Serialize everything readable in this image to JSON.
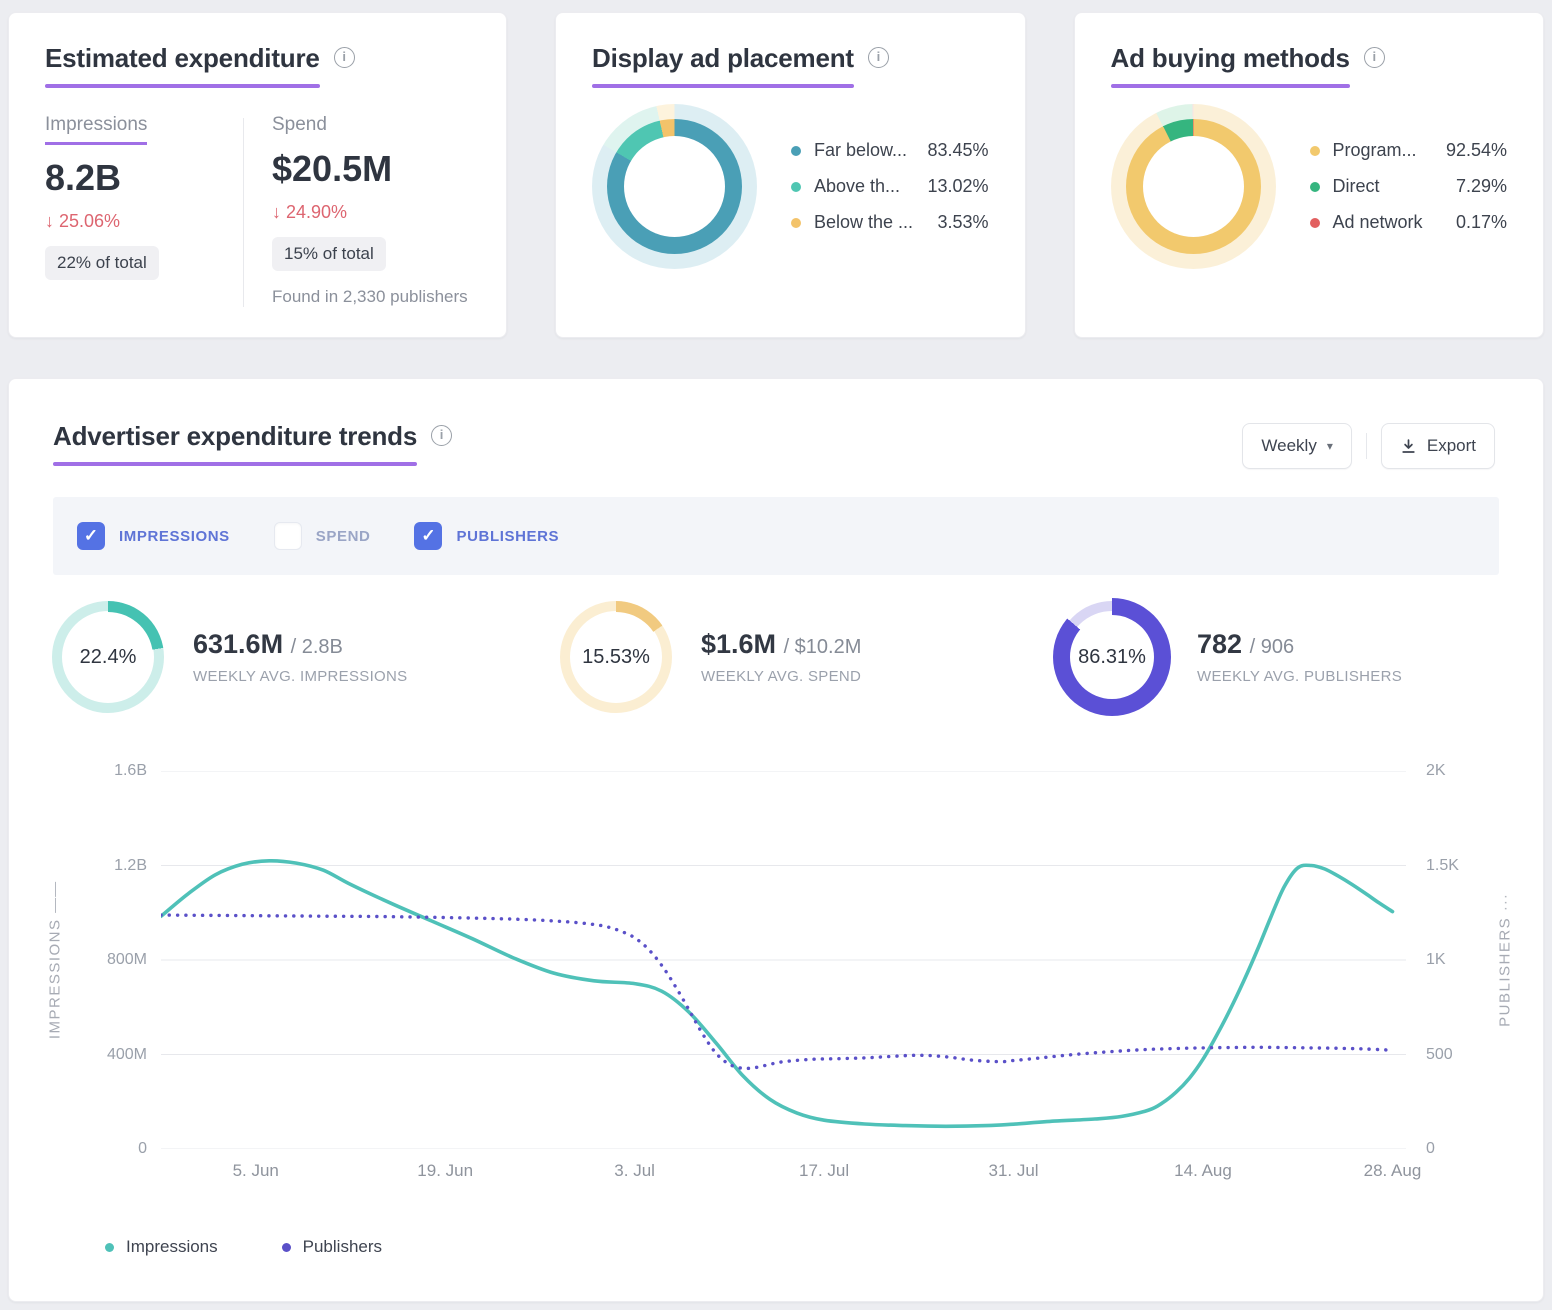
{
  "colors": {
    "accent_purple": "#a06fe6",
    "teal_line": "#4fc1b8",
    "purple_line": "#5a50c8",
    "checkbox_blue": "#5472e4",
    "negative_red": "#dd6570"
  },
  "icons": {
    "info": "i",
    "chevron_down": "▾",
    "check": "✓"
  },
  "cards": {
    "estimated_expenditure": {
      "title": "Estimated expenditure",
      "columns": [
        {
          "label": "Impressions",
          "value": "8.2B",
          "change": "↓ 25.06%",
          "share": "22% of total"
        },
        {
          "label": "Spend",
          "value": "$20.5M",
          "change": "↓ 24.90%",
          "share": "15% of total"
        }
      ],
      "footnote": "Found in 2,330 publishers"
    },
    "display_ad_placement": {
      "title": "Display ad placement",
      "legend": [
        {
          "label": "Far below...",
          "value": "83.45%",
          "color": "#4a9fb6"
        },
        {
          "label": "Above th...",
          "value": "13.02%",
          "color": "#4fc6b2"
        },
        {
          "label": "Below the ...",
          "value": "3.53%",
          "color": "#f3c36a"
        }
      ],
      "donut": {
        "mode": "segments",
        "segments": [
          {
            "pct": 83.45,
            "color": "#4a9fb6"
          },
          {
            "pct": 13.02,
            "color": "#4fc6b2"
          },
          {
            "pct": 3.53,
            "color": "#f3c36a"
          }
        ],
        "halo": [
          {
            "pct": 83.45,
            "color": "#ddeef3"
          },
          {
            "pct": 13.02,
            "color": "#dff4ef"
          },
          {
            "pct": 3.53,
            "color": "#fdf3dd"
          }
        ]
      }
    },
    "ad_buying_methods": {
      "title": "Ad buying methods",
      "legend": [
        {
          "label": "Program...",
          "value": "92.54%",
          "color": "#f2c96d"
        },
        {
          "label": "Direct",
          "value": "7.29%",
          "color": "#35b57f"
        },
        {
          "label": "Ad network",
          "value": "0.17%",
          "color": "#e25f5f"
        }
      ],
      "donut": {
        "mode": "segments",
        "segments": [
          {
            "pct": 92.54,
            "color": "#f2c96d"
          },
          {
            "pct": 7.29,
            "color": "#35b57f"
          },
          {
            "pct": 0.17,
            "color": "#e25f5f"
          }
        ],
        "halo": [
          {
            "pct": 92.54,
            "color": "#fbf0d8"
          },
          {
            "pct": 7.29,
            "color": "#def4e8"
          },
          {
            "pct": 0.17,
            "color": "#fbe2e2"
          }
        ]
      }
    }
  },
  "trends": {
    "title": "Advertiser expenditure trends",
    "period_selector": {
      "value": "Weekly"
    },
    "export_label": "Export",
    "toggles": [
      {
        "label": "IMPRESSIONS",
        "checked": true
      },
      {
        "label": "SPEND",
        "checked": false
      },
      {
        "label": "PUBLISHERS",
        "checked": true
      }
    ],
    "stats": [
      {
        "percent": "22.4%",
        "value": "631.6M",
        "total": "/ 2.8B",
        "caption": "WEEKLY AVG. IMPRESSIONS",
        "donut": {
          "mode": "progress",
          "pct": 22.4,
          "color": "#45c2b2",
          "track": "#cdeeea"
        }
      },
      {
        "percent": "15.53%",
        "value": "$1.6M",
        "total": "/ $10.2M",
        "caption": "WEEKLY AVG. SPEND",
        "donut": {
          "mode": "progress",
          "pct": 15.53,
          "color": "#f1ca80",
          "track": "#fbeed2"
        }
      },
      {
        "percent": "86.31%",
        "value": "782",
        "total": "/ 906",
        "caption": "WEEKLY AVG. PUBLISHERS",
        "donut": {
          "mode": "progress",
          "pct": 86.31,
          "color": "#5b50d6",
          "track": "#d9d6f4",
          "thick": true
        }
      }
    ],
    "legend": [
      {
        "label": "Impressions",
        "color": "#4fc1b8"
      },
      {
        "label": "Publishers",
        "color": "#5a50c8"
      }
    ]
  },
  "chart_data": {
    "type": "line",
    "title": "Advertiser expenditure trends",
    "grid": true,
    "legend_position": "bottom",
    "x_axis": {
      "tick_labels": [
        "5. Jun",
        "19. Jun",
        "3. Jul",
        "17. Jul",
        "31. Jul",
        "14. Aug",
        "28. Aug"
      ],
      "tick_positions_days": [
        7,
        21,
        35,
        49,
        63,
        77,
        91
      ],
      "range_days": [
        0,
        92
      ]
    },
    "y_left": {
      "label": "IMPRESSIONS",
      "marker": "——",
      "tick_labels_top_down": [
        "1.6B",
        "1.2B",
        "800M",
        "400M",
        "0"
      ],
      "range": [
        0,
        1600
      ],
      "units": "millions"
    },
    "y_right": {
      "label": "PUBLISHERS",
      "marker": "···",
      "tick_labels_top_down": [
        "2K",
        "1.5K",
        "1K",
        "500",
        "0"
      ],
      "range": [
        0,
        2000
      ]
    },
    "series": [
      {
        "name": "Impressions",
        "axis": "left",
        "style": "solid",
        "color": "#4fc1b8",
        "points_day_value": [
          [
            0,
            985
          ],
          [
            2,
            1080
          ],
          [
            4,
            1160
          ],
          [
            6,
            1205
          ],
          [
            8,
            1220
          ],
          [
            10,
            1210
          ],
          [
            12,
            1180
          ],
          [
            14,
            1120
          ],
          [
            17,
            1040
          ],
          [
            20,
            965
          ],
          [
            23,
            890
          ],
          [
            26,
            810
          ],
          [
            29,
            745
          ],
          [
            32,
            712
          ],
          [
            35,
            700
          ],
          [
            37,
            668
          ],
          [
            39,
            580
          ],
          [
            41,
            450
          ],
          [
            43,
            310
          ],
          [
            45,
            210
          ],
          [
            47,
            152
          ],
          [
            49,
            122
          ],
          [
            52,
            106
          ],
          [
            55,
            99
          ],
          [
            58,
            96
          ],
          [
            61,
            99
          ],
          [
            63,
            105
          ],
          [
            66,
            118
          ],
          [
            69,
            127
          ],
          [
            71,
            138
          ],
          [
            73,
            165
          ],
          [
            74,
            195
          ],
          [
            75,
            240
          ],
          [
            76,
            300
          ],
          [
            77,
            380
          ],
          [
            78,
            480
          ],
          [
            79,
            590
          ],
          [
            80,
            710
          ],
          [
            81,
            840
          ],
          [
            82,
            980
          ],
          [
            83,
            1110
          ],
          [
            84,
            1190
          ],
          [
            85,
            1200
          ],
          [
            86,
            1185
          ],
          [
            87,
            1155
          ],
          [
            88,
            1120
          ],
          [
            89,
            1082
          ],
          [
            90,
            1042
          ],
          [
            91,
            1005
          ]
        ]
      },
      {
        "name": "Publishers",
        "axis": "right",
        "style": "dotted",
        "color": "#5a50c8",
        "points_day_value": [
          [
            0,
            1238
          ],
          [
            4,
            1236
          ],
          [
            8,
            1234
          ],
          [
            12,
            1232
          ],
          [
            16,
            1230
          ],
          [
            20,
            1226
          ],
          [
            24,
            1220
          ],
          [
            27,
            1214
          ],
          [
            30,
            1202
          ],
          [
            32,
            1188
          ],
          [
            33,
            1175
          ],
          [
            34,
            1152
          ],
          [
            35,
            1118
          ],
          [
            36,
            1058
          ],
          [
            37,
            972
          ],
          [
            38,
            862
          ],
          [
            39,
            738
          ],
          [
            40,
            612
          ],
          [
            41,
            508
          ],
          [
            42,
            448
          ],
          [
            43,
            427
          ],
          [
            44,
            432
          ],
          [
            45,
            448
          ],
          [
            46,
            462
          ],
          [
            48,
            474
          ],
          [
            50,
            478
          ],
          [
            52,
            482
          ],
          [
            54,
            490
          ],
          [
            56,
            496
          ],
          [
            58,
            488
          ],
          [
            60,
            470
          ],
          [
            62,
            462
          ],
          [
            63,
            468
          ],
          [
            65,
            482
          ],
          [
            67,
            497
          ],
          [
            69,
            509
          ],
          [
            71,
            519
          ],
          [
            73,
            527
          ],
          [
            75,
            532
          ],
          [
            77,
            535
          ],
          [
            79,
            537
          ],
          [
            81,
            538
          ],
          [
            83,
            537
          ],
          [
            85,
            535
          ],
          [
            87,
            533
          ],
          [
            89,
            529
          ],
          [
            91,
            523
          ]
        ]
      }
    ]
  }
}
